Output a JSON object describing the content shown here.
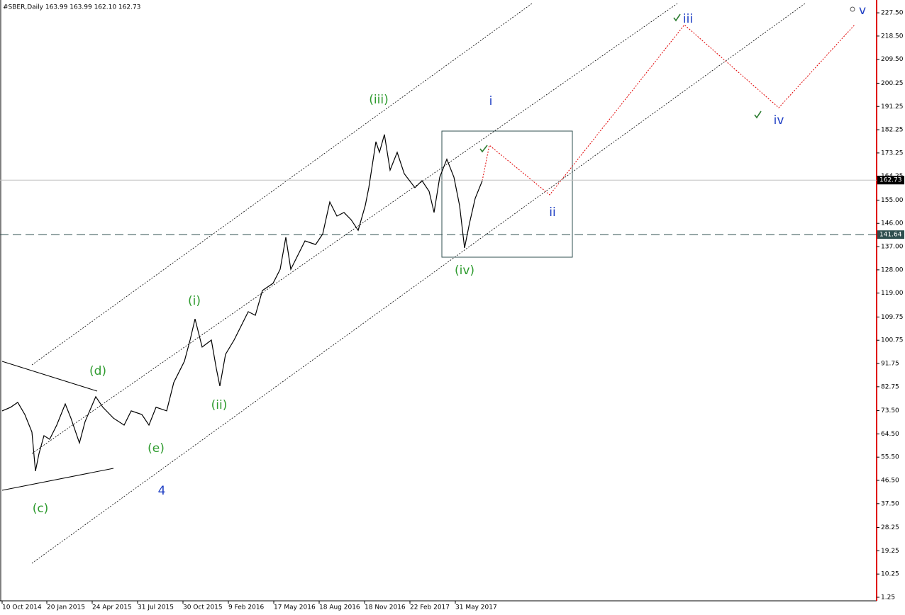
{
  "chart_data": {
    "type": "line",
    "title": "#SBER,Daily  163.99 163.99 162.10 162.73",
    "color": "#000000",
    "x": [
      3,
      15,
      25,
      35,
      45,
      50,
      55,
      62,
      70,
      80,
      92,
      100,
      112,
      120,
      135,
      145,
      160,
      175,
      185,
      200,
      210,
      220,
      235,
      245,
      260,
      268,
      275,
      285,
      298,
      305,
      310,
      318,
      330,
      340,
      350,
      360,
      370,
      385,
      395,
      403,
      410,
      420,
      430,
      445,
      455,
      465,
      475,
      485,
      495,
      505,
      515,
      520,
      530,
      535,
      542,
      550,
      560,
      570,
      585,
      595,
      605,
      612,
      620,
      630,
      640,
      648,
      655,
      662,
      670,
      680
    ],
    "values": [
      73.4,
      74.8,
      76.7,
      72.0,
      65.2,
      50.1,
      56.9,
      63.8,
      62.4,
      67.9,
      76.1,
      70.6,
      61.0,
      69.3,
      78.9,
      74.8,
      70.6,
      67.9,
      73.4,
      72.0,
      67.9,
      74.8,
      73.4,
      84.4,
      92.6,
      100.8,
      109.0,
      98.1,
      100.8,
      89.8,
      83.0,
      95.3,
      100.8,
      106.3,
      111.8,
      110.4,
      120.0,
      122.8,
      128.2,
      140.6,
      128.2,
      133.7,
      139.2,
      137.8,
      141.9,
      154.3,
      148.8,
      150.2,
      147.4,
      143.3,
      152.9,
      159.8,
      177.6,
      173.5,
      180.4,
      166.6,
      173.5,
      165.2,
      159.8,
      162.5,
      158.4,
      150.2,
      163.9,
      170.8,
      163.9,
      152.9,
      136.5,
      146.1,
      155.7,
      162.5
    ],
    "xlim": [
      0,
      1236
    ],
    "ylim": [
      -0.12,
      232.46
    ],
    "xticks": [
      {
        "value": 3,
        "label": "10 Oct 2014"
      },
      {
        "value": 66,
        "label": "20 Jan 2015"
      },
      {
        "value": 130,
        "label": "24 Apr 2015"
      },
      {
        "value": 194,
        "label": "31 Jul 2015"
      },
      {
        "value": 258,
        "label": "30 Oct 2015"
      },
      {
        "value": 322,
        "label": "9 Feb 2016"
      },
      {
        "value": 386,
        "label": "17 May 2016"
      },
      {
        "value": 450,
        "label": "18 Aug 2016"
      },
      {
        "value": 514,
        "label": "18 Nov 2016"
      },
      {
        "value": 578,
        "label": "22 Feb 2017"
      },
      {
        "value": 642,
        "label": "31 May 2017"
      }
    ],
    "yticks": [
      {
        "value": 227.5,
        "label": "227.50"
      },
      {
        "value": 218.5,
        "label": "218.50"
      },
      {
        "value": 209.5,
        "label": "209.50"
      },
      200.25,
      191.25,
      182.25,
      173.25,
      164.25,
      {
        "value": 155,
        "label": "155.00"
      },
      {
        "value": 146,
        "label": "146.00"
      },
      {
        "value": 137,
        "label": "137.00"
      },
      {
        "value": 128,
        "label": "128.00"
      },
      {
        "value": 119,
        "label": "119.00"
      },
      109.75,
      100.75,
      91.75,
      82.75,
      {
        "value": 73.5,
        "label": "73.50"
      },
      {
        "value": 64.5,
        "label": "64.50"
      },
      {
        "value": 55.5,
        "label": "55.50"
      },
      {
        "value": 46.5,
        "label": "46.50"
      },
      {
        "value": 37.5,
        "label": "37.50"
      },
      28.25,
      19.25,
      10.25,
      1.25
    ],
    "levels": [
      162.73,
      141.64
    ],
    "annotations": [
      "(d)",
      "(c)",
      "(e)",
      "4",
      "(i)",
      "(ii)",
      "(iii)",
      "(iv)",
      "i",
      "ii",
      "iii",
      "iv",
      "v"
    ]
  }
}
